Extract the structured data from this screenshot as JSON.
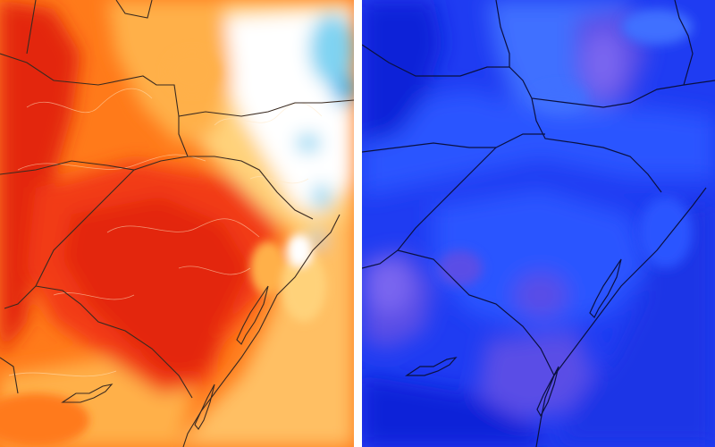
{
  "maps": [
    {
      "name": "temperature-anomaly-warm",
      "palette": {
        "base": "#ff7a1a",
        "deep": "#e3260e",
        "hot": "#f23a12",
        "light": "#ffb04a",
        "pale": "#ffd27a",
        "white": "#ffffff",
        "cold": "#7fd3f2",
        "cold_deep": "#45b8ea",
        "sea": "#ffbf63",
        "borders": "#3a2a20",
        "contours": "#ffe6c2"
      }
    },
    {
      "name": "temperature-anomaly-cold",
      "palette": {
        "base": "#1f3cf2",
        "deep": "#0f22d8",
        "mid": "#2a55ff",
        "light": "#3f70ff",
        "violet": "#5a4ee6",
        "violet_light": "#7a66f0",
        "sea": "#1a36e6",
        "borders": "#0a1040"
      }
    }
  ]
}
